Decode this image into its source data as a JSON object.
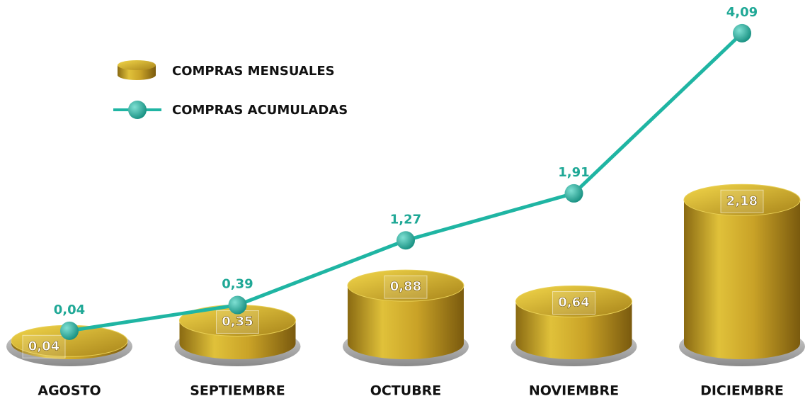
{
  "chart_data": {
    "type": "combo",
    "categories": [
      "AGOSTO",
      "SEPTIEMBRE",
      "OCTUBRE",
      "NOVIEMBRE",
      "DICIEMBRE"
    ],
    "series": [
      {
        "name": "COMPRAS MENSUALES",
        "type": "bar",
        "color": "#c9a227",
        "values": [
          0.04,
          0.35,
          0.88,
          0.64,
          2.18
        ],
        "value_labels": [
          "0,04",
          "0,35",
          "0,88",
          "0,64",
          "2,18"
        ]
      },
      {
        "name": "COMPRAS ACUMULADAS",
        "type": "line",
        "color": "#1fb5a3",
        "values": [
          0.04,
          0.39,
          1.27,
          1.91,
          4.09
        ],
        "value_labels": [
          "0,04",
          "0,39",
          "1,27",
          "1,91",
          "4,09"
        ]
      }
    ]
  }
}
